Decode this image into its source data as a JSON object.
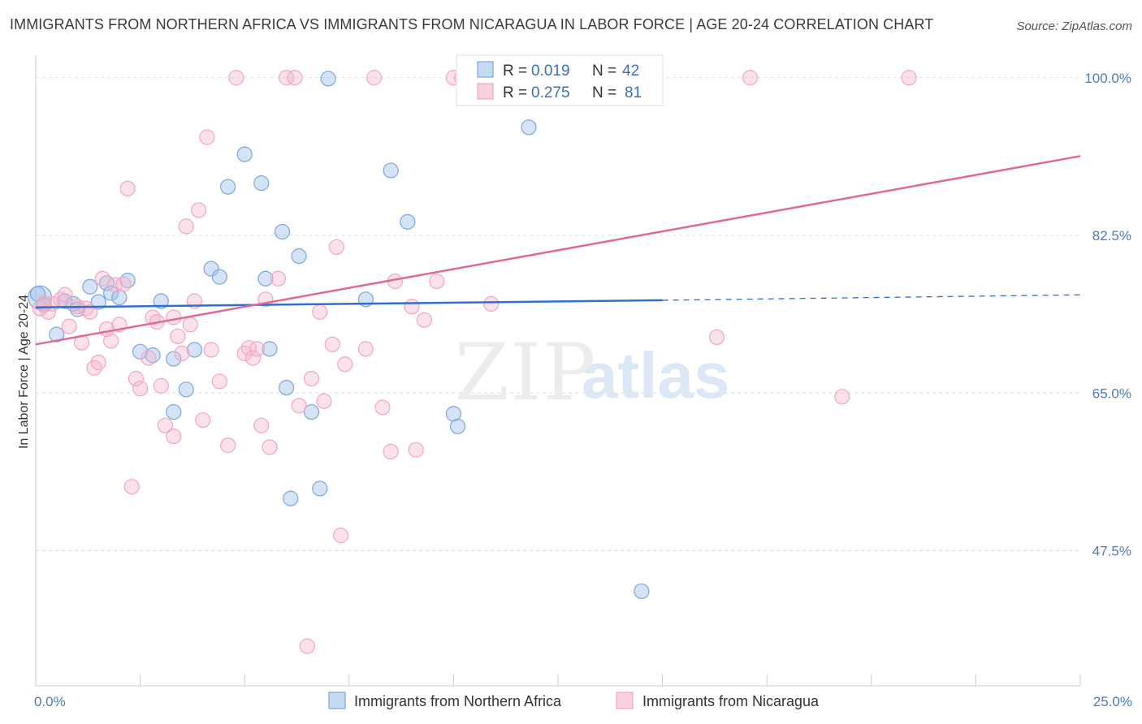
{
  "header": {
    "title": "IMMIGRANTS FROM NORTHERN AFRICA VS IMMIGRANTS FROM NICARAGUA IN LABOR FORCE | AGE 20-24 CORRELATION CHART",
    "source": "Source: ZipAtlas.com"
  },
  "watermark": {
    "zip": "ZIP",
    "atlas": "atlas"
  },
  "legend": {
    "r_label": "R =",
    "n_label": "N =",
    "rows": [
      {
        "r": "0.019",
        "n": "42"
      },
      {
        "r": "0.275",
        "n": "81"
      }
    ]
  },
  "chart_data": {
    "type": "scatter",
    "title": "IMMIGRANTS FROM NORTHERN AFRICA VS IMMIGRANTS FROM NICARAGUA IN LABOR FORCE | AGE 20-24 CORRELATION CHART",
    "xlabel": "",
    "ylabel": "In Labor Force | Age 20-24",
    "xlim": [
      0,
      25
    ],
    "ylim": [
      32.5,
      102.5
    ],
    "x_tick_labels": [
      "0.0%",
      "25.0%"
    ],
    "y_ticks": [
      {
        "value": 100,
        "label": "100.0%"
      },
      {
        "value": 82.5,
        "label": "82.5%"
      },
      {
        "value": 65,
        "label": "65.0%"
      },
      {
        "value": 47.5,
        "label": "47.5%"
      }
    ],
    "grid": true,
    "legend_position": "top-center",
    "series": [
      {
        "name": "Immigrants from Northern Africa",
        "color": "#7ba7dc",
        "line_color": "#2f6fcf",
        "trend": {
          "x0": 0,
          "y0": 74.5,
          "x1": 15,
          "y1": 75.3,
          "dashed_to_x": 25,
          "dashed_to_y": 75.9
        },
        "points": [
          [
            0.1,
            75.6
          ],
          [
            0.2,
            74.8
          ],
          [
            0.5,
            71.5
          ],
          [
            0.7,
            75.2
          ],
          [
            0.9,
            74.9
          ],
          [
            1.0,
            74.3
          ],
          [
            1.3,
            76.8
          ],
          [
            1.5,
            75.1
          ],
          [
            1.7,
            77.2
          ],
          [
            1.8,
            76.1
          ],
          [
            2.2,
            77.5
          ],
          [
            2.0,
            75.6
          ],
          [
            2.5,
            69.6
          ],
          [
            2.8,
            69.2
          ],
          [
            3.0,
            75.2
          ],
          [
            3.3,
            68.8
          ],
          [
            3.6,
            65.4
          ],
          [
            3.3,
            62.9
          ],
          [
            3.8,
            69.8
          ],
          [
            4.2,
            78.8
          ],
          [
            4.4,
            77.9
          ],
          [
            4.6,
            87.9
          ],
          [
            5.0,
            91.5
          ],
          [
            5.4,
            88.3
          ],
          [
            5.5,
            77.7
          ],
          [
            5.6,
            69.9
          ],
          [
            5.9,
            82.9
          ],
          [
            6.0,
            65.6
          ],
          [
            6.1,
            53.3
          ],
          [
            6.3,
            80.2
          ],
          [
            6.6,
            62.9
          ],
          [
            6.8,
            54.4
          ],
          [
            7.0,
            99.9
          ],
          [
            7.9,
            75.4
          ],
          [
            8.5,
            89.7
          ],
          [
            8.9,
            84.0
          ],
          [
            10.0,
            62.7
          ],
          [
            10.1,
            61.3
          ],
          [
            11.8,
            94.5
          ],
          [
            13.7,
            99.8
          ],
          [
            14.5,
            43.0
          ],
          [
            0.05,
            76.0
          ]
        ],
        "sizes": [
          1.6,
          1,
          1,
          1,
          1,
          1,
          1,
          1,
          1,
          1,
          1,
          1,
          1,
          1,
          1,
          1,
          1,
          1,
          1,
          1,
          1,
          1,
          1,
          1,
          1,
          1,
          1,
          1,
          1,
          1,
          1,
          1,
          1,
          1,
          1,
          1,
          1,
          1,
          1,
          1,
          1,
          1
        ]
      },
      {
        "name": "Immigrants from Nicaragua",
        "color": "#f2a6c0",
        "line_color": "#e06a95",
        "trend": {
          "x0": 0,
          "y0": 70.4,
          "x1": 25,
          "y1": 91.3
        },
        "points": [
          [
            0.1,
            74.4
          ],
          [
            0.2,
            75.0
          ],
          [
            0.3,
            74.0
          ],
          [
            0.4,
            74.9
          ],
          [
            0.6,
            75.4
          ],
          [
            0.7,
            75.9
          ],
          [
            0.8,
            72.4
          ],
          [
            1.0,
            74.6
          ],
          [
            1.1,
            70.6
          ],
          [
            1.2,
            74.4
          ],
          [
            1.4,
            67.8
          ],
          [
            1.5,
            68.4
          ],
          [
            1.6,
            77.7
          ],
          [
            1.7,
            72.1
          ],
          [
            1.8,
            70.8
          ],
          [
            1.9,
            77.0
          ],
          [
            2.0,
            72.6
          ],
          [
            2.1,
            77.1
          ],
          [
            2.2,
            87.7
          ],
          [
            2.3,
            54.6
          ],
          [
            2.4,
            66.6
          ],
          [
            2.5,
            65.5
          ],
          [
            2.7,
            68.9
          ],
          [
            2.8,
            73.4
          ],
          [
            2.9,
            72.9
          ],
          [
            3.0,
            65.8
          ],
          [
            3.1,
            61.4
          ],
          [
            3.3,
            73.4
          ],
          [
            3.4,
            71.3
          ],
          [
            3.5,
            69.4
          ],
          [
            3.6,
            83.5
          ],
          [
            3.7,
            72.6
          ],
          [
            3.8,
            75.2
          ],
          [
            3.9,
            85.3
          ],
          [
            4.0,
            62.0
          ],
          [
            4.1,
            93.4
          ],
          [
            4.2,
            69.8
          ],
          [
            4.4,
            66.3
          ],
          [
            4.6,
            59.2
          ],
          [
            4.8,
            100.0
          ],
          [
            5.0,
            69.4
          ],
          [
            5.1,
            70.0
          ],
          [
            5.2,
            68.9
          ],
          [
            5.3,
            69.9
          ],
          [
            5.4,
            61.4
          ],
          [
            5.5,
            75.4
          ],
          [
            5.6,
            59.0
          ],
          [
            5.8,
            77.7
          ],
          [
            6.0,
            100.0
          ],
          [
            6.2,
            100.0
          ],
          [
            6.3,
            63.6
          ],
          [
            6.5,
            36.9
          ],
          [
            6.6,
            66.6
          ],
          [
            6.8,
            74.0
          ],
          [
            6.9,
            64.1
          ],
          [
            7.1,
            70.4
          ],
          [
            7.2,
            81.2
          ],
          [
            7.3,
            49.2
          ],
          [
            7.4,
            68.2
          ],
          [
            7.9,
            69.9
          ],
          [
            8.1,
            100.0
          ],
          [
            8.3,
            63.4
          ],
          [
            8.5,
            58.5
          ],
          [
            8.6,
            77.4
          ],
          [
            9.0,
            74.6
          ],
          [
            9.1,
            58.7
          ],
          [
            9.3,
            73.1
          ],
          [
            9.6,
            77.4
          ],
          [
            10.0,
            100.0
          ],
          [
            10.2,
            100.0
          ],
          [
            10.9,
            74.9
          ],
          [
            11.4,
            100.0
          ],
          [
            12.8,
            100.0
          ],
          [
            13.0,
            100.0
          ],
          [
            14.1,
            100.0
          ],
          [
            16.3,
            71.2
          ],
          [
            17.1,
            100.0
          ],
          [
            19.3,
            64.6
          ],
          [
            20.9,
            100.0
          ],
          [
            1.3,
            74.0
          ],
          [
            3.3,
            60.2
          ]
        ]
      }
    ]
  },
  "bottom_legend": {
    "items": [
      {
        "label": "Immigrants from Northern Africa"
      },
      {
        "label": "Immigrants from Nicaragua"
      }
    ]
  }
}
